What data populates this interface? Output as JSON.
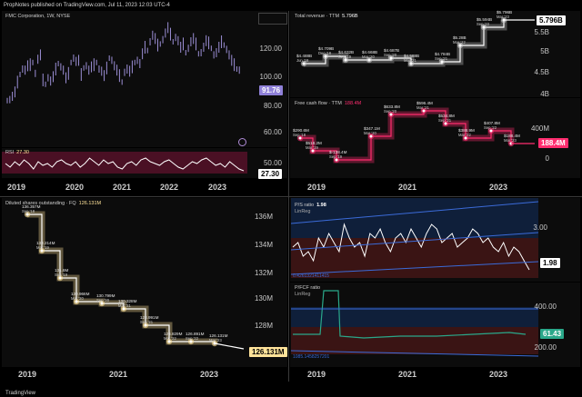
{
  "header": {
    "publish_line": "PropNotes published on TradingView.com, Jul 11, 2023 12:03 UTC-4"
  },
  "footer": {
    "brand": "TradingView"
  },
  "colors": {
    "price": "#9c8fd6",
    "price_tag_bg": "#8f80d8",
    "rsi_line": "#ffffff",
    "rsi_band": "#4a1024",
    "revenue": "#ffffff",
    "revenue_glow": "#c9c9c9",
    "fcf": "#ff2d6f",
    "fcf_glow": "#ff2d6f",
    "shares": "#ffffff",
    "shares_glow": "#ffe39a",
    "shares_tag_bg": "#ffe39a",
    "ps_upper_band": "#0f1f3a",
    "ps_lower_band": "#3a1414",
    "pfcf_line": "#2aa88a",
    "pfcf_tag_bg": "#2aa88a",
    "pfcf_spike": "#2f9e6f",
    "channel_line": "#3b6bd9"
  },
  "price_panel": {
    "title": "FMC Corporation, 1W, NYSE",
    "y_ticks": [
      "120.00",
      "100.00",
      "80.00",
      "60.00"
    ],
    "last_price": "91.76"
  },
  "rsi_panel": {
    "title": "RSI",
    "value_label": "27.30",
    "y_ticks": [
      "50.00"
    ],
    "last": "27.30"
  },
  "left_x_ticks": [
    "2019",
    "2020",
    "2021",
    "2022",
    "2023"
  ],
  "chart_data": [
    {
      "id": "revenue",
      "type": "line",
      "title": "Total revenue · TTM",
      "last_label": "5.796B",
      "y_ticks": [
        "5.5B",
        "5B",
        "4.5B",
        "4B"
      ],
      "x_ticks": [
        "2019",
        "2021",
        "2023"
      ],
      "points": [
        {
          "value": "$4.488B",
          "period": "Jun '18"
        },
        {
          "value": "$4.709B",
          "period": "Dec '18"
        },
        {
          "value": "$4.632B",
          "period": "Sep '19"
        },
        {
          "value": "$4.668B",
          "period": "Mar '20"
        },
        {
          "value": "$4.687B",
          "period": "Sep '20"
        },
        {
          "value": "$4.588B",
          "period": "Mar '21"
        },
        {
          "value": "$4.784B",
          "period": "Sep '21"
        },
        {
          "value": "$5.28B",
          "period": "Mar '22"
        },
        {
          "value": "$5.594B",
          "period": "Sep '22"
        },
        {
          "value": "$5.796B",
          "period": "Mar '23"
        }
      ]
    },
    {
      "id": "fcf",
      "type": "line",
      "title": "Free cash flow · TTM",
      "title_value": "188.4M",
      "last_label": "188.4M",
      "y_ticks": [
        "400M",
        "200M",
        "0"
      ],
      "points": [
        {
          "value": "$290.6M",
          "period": "Sep '18"
        },
        {
          "value": "$-138.4M",
          "period": "Sep '19"
        },
        {
          "value": "$347.1M",
          "period": "Mar '20"
        },
        {
          "value": "$633.8M",
          "period": "Sep '20"
        },
        {
          "value": "$596.4M",
          "period": "Mar '21"
        },
        {
          "value": "$534.8M",
          "period": "Sep '21"
        },
        {
          "value": "$388.9M",
          "period": "Mar '22"
        },
        {
          "value": "$407.8M",
          "period": "Sep '22"
        },
        {
          "value": "$188.4M",
          "period": "Mar '23"
        },
        {
          "value": "$518.2M",
          "period": "Mar '19"
        }
      ]
    },
    {
      "id": "shares",
      "type": "line",
      "title": "Diluted shares outstanding · FQ",
      "title_value": "126.131M",
      "last_label": "126.131M",
      "y_ticks": [
        "136M",
        "134M",
        "132M",
        "130M",
        "128M",
        "126M"
      ],
      "x_ticks": [
        "2019",
        "2021",
        "2023"
      ],
      "points": [
        {
          "value": "136.357M",
          "period": "Sep '18"
        },
        {
          "value": "133.214M",
          "period": "Mar '19"
        },
        {
          "value": "131.6M",
          "period": "Sep '19"
        },
        {
          "value": "130.966M",
          "period": "Mar '20"
        },
        {
          "value": "130.799M",
          "period": "Sep '20"
        },
        {
          "value": "130.328M",
          "period": "Mar '21"
        },
        {
          "value": "128.991M",
          "period": "Sep '21"
        },
        {
          "value": "126.829M",
          "period": "Mar '22"
        },
        {
          "value": "126.891M",
          "period": "Sep '22"
        },
        {
          "value": "126.131M",
          "period": "Mar '23"
        }
      ]
    },
    {
      "id": "ps",
      "type": "line",
      "title": "P/S ratio",
      "title_value": "1.98",
      "subtitle": "LinReg",
      "last_label": "1.98",
      "y_ticks": [
        "3.00"
      ],
      "footnote": "0.4261321411415"
    },
    {
      "id": "pfcf",
      "type": "line",
      "title": "P/FCF ratio",
      "subtitle": "LinReg",
      "last_label": "61.43",
      "y_ticks": [
        "400.00",
        "200.00"
      ],
      "footnote": "1085.1458257201",
      "x_ticks": [
        "2019",
        "2021",
        "2023"
      ]
    }
  ]
}
